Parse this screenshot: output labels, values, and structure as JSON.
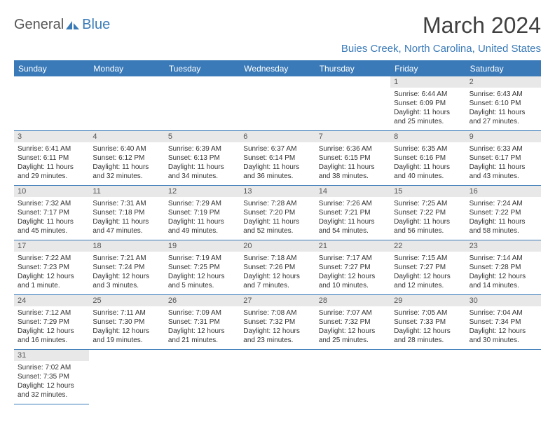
{
  "brand": {
    "part1": "General",
    "part2": "Blue",
    "color_text": "#555555",
    "color_accent": "#3a7ab8"
  },
  "title": "March 2024",
  "location": "Buies Creek, North Carolina, United States",
  "days_of_week": [
    "Sunday",
    "Monday",
    "Tuesday",
    "Wednesday",
    "Thursday",
    "Friday",
    "Saturday"
  ],
  "colors": {
    "header_bg": "#3a7ab8",
    "header_fg": "#ffffff",
    "daynum_bg": "#e8e8e8",
    "daynum_fg": "#555555",
    "cell_border": "#3a7ab8",
    "body_fg": "#333333",
    "page_bg": "#ffffff"
  },
  "leading_blanks": 5,
  "days": [
    {
      "n": "1",
      "sunrise": "Sunrise: 6:44 AM",
      "sunset": "Sunset: 6:09 PM",
      "daylight": "Daylight: 11 hours and 25 minutes."
    },
    {
      "n": "2",
      "sunrise": "Sunrise: 6:43 AM",
      "sunset": "Sunset: 6:10 PM",
      "daylight": "Daylight: 11 hours and 27 minutes."
    },
    {
      "n": "3",
      "sunrise": "Sunrise: 6:41 AM",
      "sunset": "Sunset: 6:11 PM",
      "daylight": "Daylight: 11 hours and 29 minutes."
    },
    {
      "n": "4",
      "sunrise": "Sunrise: 6:40 AM",
      "sunset": "Sunset: 6:12 PM",
      "daylight": "Daylight: 11 hours and 32 minutes."
    },
    {
      "n": "5",
      "sunrise": "Sunrise: 6:39 AM",
      "sunset": "Sunset: 6:13 PM",
      "daylight": "Daylight: 11 hours and 34 minutes."
    },
    {
      "n": "6",
      "sunrise": "Sunrise: 6:37 AM",
      "sunset": "Sunset: 6:14 PM",
      "daylight": "Daylight: 11 hours and 36 minutes."
    },
    {
      "n": "7",
      "sunrise": "Sunrise: 6:36 AM",
      "sunset": "Sunset: 6:15 PM",
      "daylight": "Daylight: 11 hours and 38 minutes."
    },
    {
      "n": "8",
      "sunrise": "Sunrise: 6:35 AM",
      "sunset": "Sunset: 6:16 PM",
      "daylight": "Daylight: 11 hours and 40 minutes."
    },
    {
      "n": "9",
      "sunrise": "Sunrise: 6:33 AM",
      "sunset": "Sunset: 6:17 PM",
      "daylight": "Daylight: 11 hours and 43 minutes."
    },
    {
      "n": "10",
      "sunrise": "Sunrise: 7:32 AM",
      "sunset": "Sunset: 7:17 PM",
      "daylight": "Daylight: 11 hours and 45 minutes."
    },
    {
      "n": "11",
      "sunrise": "Sunrise: 7:31 AM",
      "sunset": "Sunset: 7:18 PM",
      "daylight": "Daylight: 11 hours and 47 minutes."
    },
    {
      "n": "12",
      "sunrise": "Sunrise: 7:29 AM",
      "sunset": "Sunset: 7:19 PM",
      "daylight": "Daylight: 11 hours and 49 minutes."
    },
    {
      "n": "13",
      "sunrise": "Sunrise: 7:28 AM",
      "sunset": "Sunset: 7:20 PM",
      "daylight": "Daylight: 11 hours and 52 minutes."
    },
    {
      "n": "14",
      "sunrise": "Sunrise: 7:26 AM",
      "sunset": "Sunset: 7:21 PM",
      "daylight": "Daylight: 11 hours and 54 minutes."
    },
    {
      "n": "15",
      "sunrise": "Sunrise: 7:25 AM",
      "sunset": "Sunset: 7:22 PM",
      "daylight": "Daylight: 11 hours and 56 minutes."
    },
    {
      "n": "16",
      "sunrise": "Sunrise: 7:24 AM",
      "sunset": "Sunset: 7:22 PM",
      "daylight": "Daylight: 11 hours and 58 minutes."
    },
    {
      "n": "17",
      "sunrise": "Sunrise: 7:22 AM",
      "sunset": "Sunset: 7:23 PM",
      "daylight": "Daylight: 12 hours and 1 minute."
    },
    {
      "n": "18",
      "sunrise": "Sunrise: 7:21 AM",
      "sunset": "Sunset: 7:24 PM",
      "daylight": "Daylight: 12 hours and 3 minutes."
    },
    {
      "n": "19",
      "sunrise": "Sunrise: 7:19 AM",
      "sunset": "Sunset: 7:25 PM",
      "daylight": "Daylight: 12 hours and 5 minutes."
    },
    {
      "n": "20",
      "sunrise": "Sunrise: 7:18 AM",
      "sunset": "Sunset: 7:26 PM",
      "daylight": "Daylight: 12 hours and 7 minutes."
    },
    {
      "n": "21",
      "sunrise": "Sunrise: 7:17 AM",
      "sunset": "Sunset: 7:27 PM",
      "daylight": "Daylight: 12 hours and 10 minutes."
    },
    {
      "n": "22",
      "sunrise": "Sunrise: 7:15 AM",
      "sunset": "Sunset: 7:27 PM",
      "daylight": "Daylight: 12 hours and 12 minutes."
    },
    {
      "n": "23",
      "sunrise": "Sunrise: 7:14 AM",
      "sunset": "Sunset: 7:28 PM",
      "daylight": "Daylight: 12 hours and 14 minutes."
    },
    {
      "n": "24",
      "sunrise": "Sunrise: 7:12 AM",
      "sunset": "Sunset: 7:29 PM",
      "daylight": "Daylight: 12 hours and 16 minutes."
    },
    {
      "n": "25",
      "sunrise": "Sunrise: 7:11 AM",
      "sunset": "Sunset: 7:30 PM",
      "daylight": "Daylight: 12 hours and 19 minutes."
    },
    {
      "n": "26",
      "sunrise": "Sunrise: 7:09 AM",
      "sunset": "Sunset: 7:31 PM",
      "daylight": "Daylight: 12 hours and 21 minutes."
    },
    {
      "n": "27",
      "sunrise": "Sunrise: 7:08 AM",
      "sunset": "Sunset: 7:32 PM",
      "daylight": "Daylight: 12 hours and 23 minutes."
    },
    {
      "n": "28",
      "sunrise": "Sunrise: 7:07 AM",
      "sunset": "Sunset: 7:32 PM",
      "daylight": "Daylight: 12 hours and 25 minutes."
    },
    {
      "n": "29",
      "sunrise": "Sunrise: 7:05 AM",
      "sunset": "Sunset: 7:33 PM",
      "daylight": "Daylight: 12 hours and 28 minutes."
    },
    {
      "n": "30",
      "sunrise": "Sunrise: 7:04 AM",
      "sunset": "Sunset: 7:34 PM",
      "daylight": "Daylight: 12 hours and 30 minutes."
    },
    {
      "n": "31",
      "sunrise": "Sunrise: 7:02 AM",
      "sunset": "Sunset: 7:35 PM",
      "daylight": "Daylight: 12 hours and 32 minutes."
    }
  ]
}
